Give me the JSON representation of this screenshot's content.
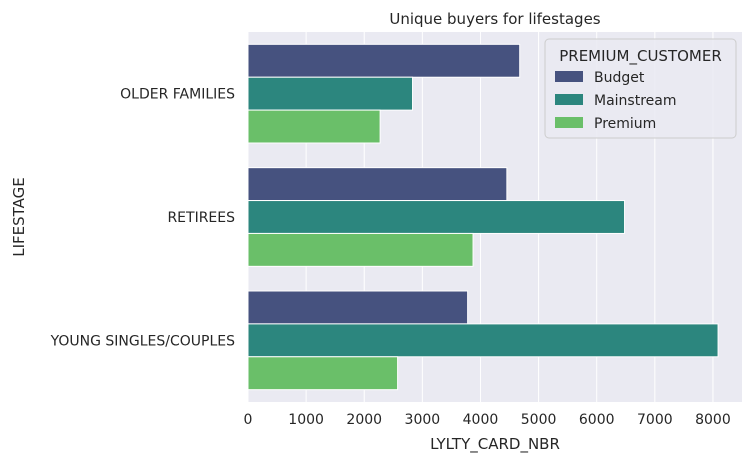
{
  "chart_data": {
    "type": "bar",
    "orientation": "horizontal",
    "title": "Unique buyers for lifestages",
    "xlabel": "LYLTY_CARD_NBR",
    "ylabel": "LIFESTAGE",
    "categories": [
      "OLDER FAMILIES",
      "RETIREES",
      "YOUNG SINGLES/COUPLES"
    ],
    "series": [
      {
        "name": "Budget",
        "color": "#46527f",
        "values": [
          4675,
          4454,
          3779
        ]
      },
      {
        "name": "Mainstream",
        "color": "#2c867e",
        "values": [
          2831,
          6479,
          8088
        ]
      },
      {
        "name": "Premium",
        "color": "#6abf69",
        "values": [
          2273,
          3872,
          2574
        ]
      }
    ],
    "xlim": [
      0,
      8500
    ],
    "xticks": [
      0,
      1000,
      2000,
      3000,
      4000,
      5000,
      6000,
      7000,
      8000
    ],
    "grid": true,
    "legend": {
      "title": "PREMIUM_CUSTOMER",
      "placement": "top-right"
    },
    "background": "#eaeaf2"
  }
}
